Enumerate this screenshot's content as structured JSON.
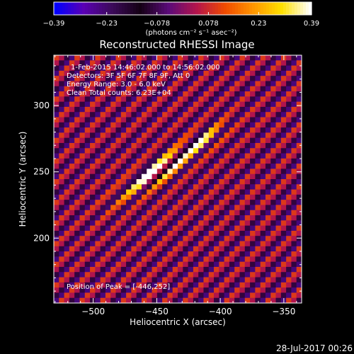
{
  "chart_data": {
    "type": "heatmap",
    "title": "Reconstructed RHESSI Image",
    "xlabel": "Heliocentric X (arcsec)",
    "ylabel": "Heliocentric Y (arcsec)",
    "xlim": [
      -531,
      -336
    ],
    "ylim": [
      151,
      338
    ],
    "x_ticks": [
      -500,
      -450,
      -400,
      -350
    ],
    "x_tick_labels": [
      "−500",
      "−450",
      "−400",
      "−350"
    ],
    "y_ticks": [
      200,
      250,
      300
    ],
    "y_tick_labels": [
      "200",
      "250",
      "300"
    ],
    "colorbar": {
      "range": [
        -0.39,
        0.39
      ],
      "ticks": [
        -0.39,
        -0.23,
        -0.078,
        0.078,
        0.23,
        0.39
      ],
      "tick_labels": [
        "−0.39",
        "−0.23",
        "−0.078",
        "0.078",
        "0.23",
        "0.39"
      ],
      "unit_label": "(photons cm⁻² s⁻¹ asec⁻²)",
      "colors": [
        "#0000ff",
        "#5a00b4",
        "#3c0a5a",
        "#140014",
        "#5a0a78",
        "#b4144b",
        "#f04b00",
        "#ff9600",
        "#ffe100",
        "#ffffff"
      ]
    },
    "peak": {
      "x": -446,
      "y": 252
    },
    "stripe_angle_deg": 45,
    "stripe_period_pixels": 4,
    "source_axis_angle_deg": -35,
    "annotations": [
      "1-Feb-2015 14:46:02.000 to 14:56:02.000",
      "Detectors: 3F 5F 6F 7F 8F 9F, Att 0",
      "Energy Range: 3.0 - 6.0 keV",
      "Clean     Total counts: 6.23E+04"
    ],
    "peak_label": "Position of Peak = [-446,252]"
  },
  "timestamp": "28-Jul-2017 00:26"
}
